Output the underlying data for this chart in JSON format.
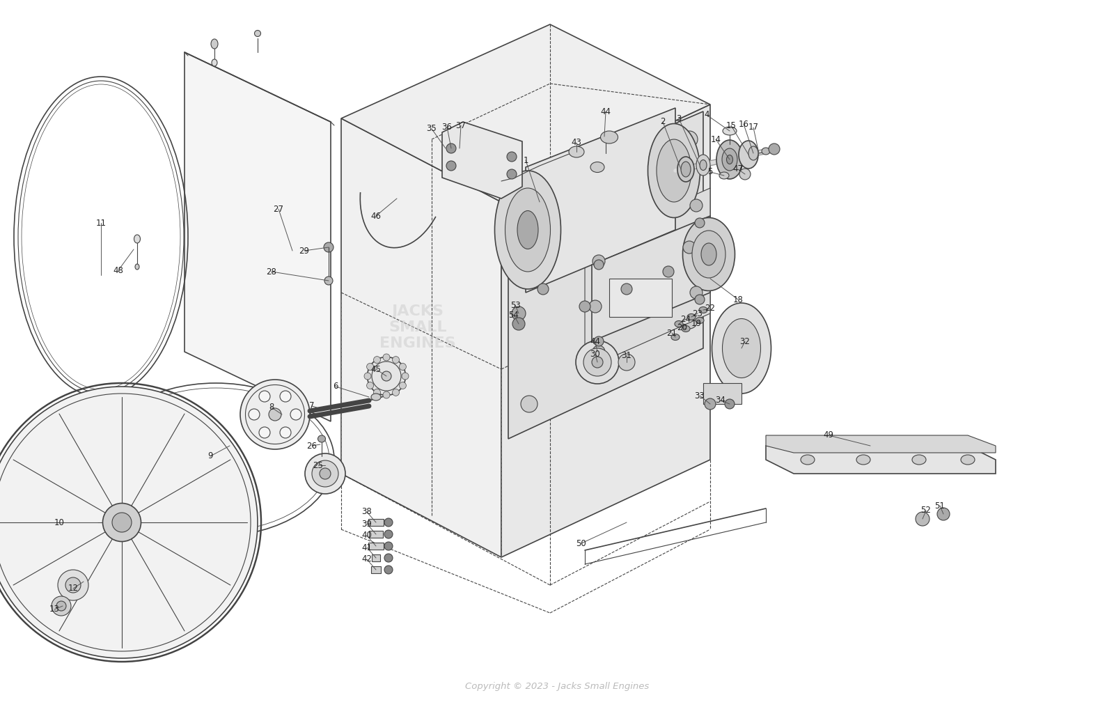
{
  "bg_color": "#ffffff",
  "line_color": "#444444",
  "label_color": "#222222",
  "label_fontsize": 8.5,
  "watermark": "Copyright © 2023 - Jacks Small Engines",
  "watermark_color": "#bbbbbb",
  "figsize": [
    16.0,
    10.38
  ],
  "dpi": 100
}
